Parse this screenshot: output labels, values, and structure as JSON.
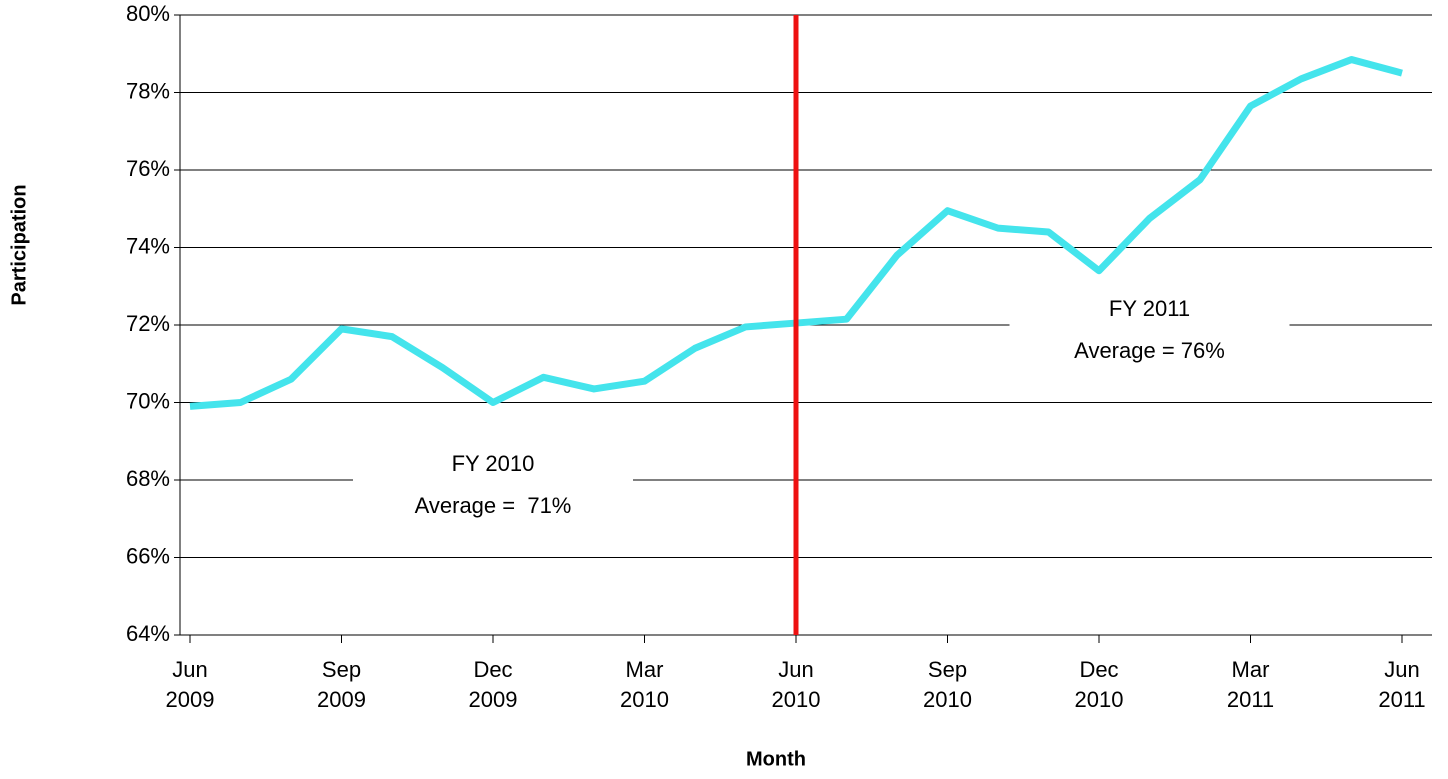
{
  "chart_data": {
    "type": "line",
    "x_label": "Month",
    "y_label": "Participation",
    "x": [
      "2009-06",
      "2009-07",
      "2009-08",
      "2009-09",
      "2009-10",
      "2009-11",
      "2009-12",
      "2010-01",
      "2010-02",
      "2010-03",
      "2010-04",
      "2010-05",
      "2010-06",
      "2010-07",
      "2010-08",
      "2010-09",
      "2010-10",
      "2010-11",
      "2010-12",
      "2011-01",
      "2011-02",
      "2011-03",
      "2011-04",
      "2011-05",
      "2011-06"
    ],
    "series": [
      {
        "color": "#44e4ec",
        "values": [
          69.9,
          70.0,
          70.6,
          71.9,
          71.7,
          70.9,
          70.0,
          70.65,
          70.35,
          70.55,
          71.4,
          71.95,
          72.05,
          72.15,
          73.8,
          74.95,
          74.5,
          74.4,
          73.4,
          74.75,
          75.75,
          77.65,
          78.35,
          78.85,
          78.5
        ]
      }
    ],
    "xlim": [
      "2009-06",
      "2011-06"
    ],
    "xticks": [
      {
        "value": "2009-06",
        "label": [
          "Jun",
          "2009"
        ]
      },
      {
        "value": "2009-09",
        "label": [
          "Sep",
          "2009"
        ]
      },
      {
        "value": "2009-12",
        "label": [
          "Dec",
          "2009"
        ]
      },
      {
        "value": "2010-03",
        "label": [
          "Mar",
          "2010"
        ]
      },
      {
        "value": "2010-06",
        "label": [
          "Jun",
          "2010"
        ]
      },
      {
        "value": "2010-09",
        "label": [
          "Sep",
          "2010"
        ]
      },
      {
        "value": "2010-12",
        "label": [
          "Dec",
          "2010"
        ]
      },
      {
        "value": "2011-03",
        "label": [
          "Mar",
          "2011"
        ]
      },
      {
        "value": "2011-06",
        "label": [
          "Jun",
          "2011"
        ]
      }
    ],
    "ylim": [
      64,
      80
    ],
    "yticks": [
      {
        "value": 64,
        "label": "64%"
      },
      {
        "value": 66,
        "label": "66%"
      },
      {
        "value": 68,
        "label": "68%"
      },
      {
        "value": 70,
        "label": "70%"
      },
      {
        "value": 72,
        "label": "72%"
      },
      {
        "value": 74,
        "label": "74%"
      },
      {
        "value": 76,
        "label": "76%"
      },
      {
        "value": 78,
        "label": "78%"
      },
      {
        "value": 80,
        "label": "80%"
      }
    ],
    "grid": true,
    "divider": {
      "x": "2010-06",
      "color": "#ee1111"
    },
    "annotations": [
      {
        "lines": [
          "FY 2010",
          "Average =  71%"
        ],
        "x": "2009-12",
        "y": 68
      },
      {
        "lines": [
          "FY 2011",
          "Average = 76%"
        ],
        "x": "2011-01",
        "y": 72
      }
    ]
  }
}
